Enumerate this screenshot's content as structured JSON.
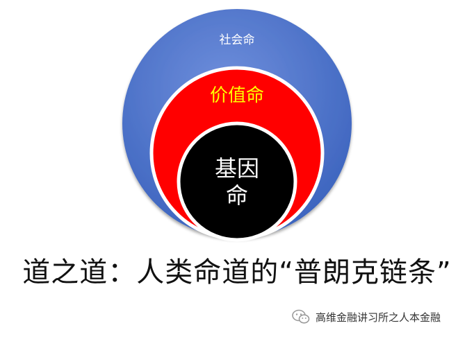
{
  "diagram": {
    "outer_label": "社会命",
    "middle_label": "价值命",
    "inner_label_line1": "基因",
    "inner_label_line2": "命",
    "colors": {
      "outer": "#4a72c8",
      "middle": "#ff0000",
      "inner": "#000000",
      "middle_text": "#ffff00"
    }
  },
  "caption": "道之道：人类命道的“普朗克链条”",
  "watermark": {
    "icon": "wechat-icon",
    "text": "高维金融讲习所之人本金融"
  }
}
